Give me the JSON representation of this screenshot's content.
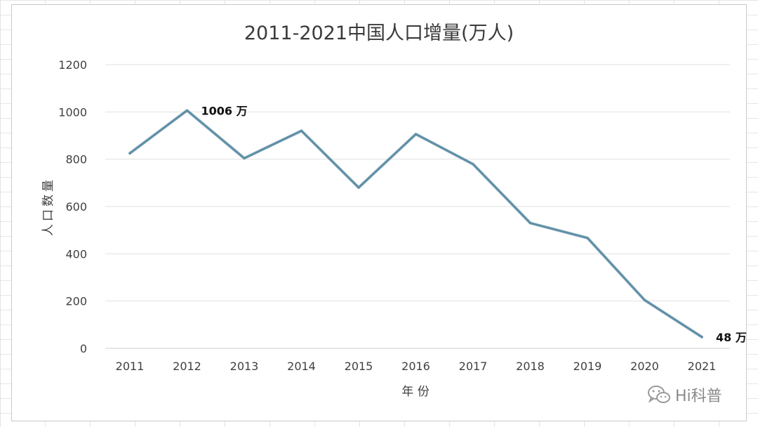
{
  "chart_data": {
    "type": "line",
    "title": "2011-2021中国人口增量(万人)",
    "xlabel": "年 份",
    "ylabel": "人口数量",
    "categories": [
      "2011",
      "2012",
      "2013",
      "2014",
      "2015",
      "2016",
      "2017",
      "2018",
      "2019",
      "2020",
      "2021"
    ],
    "series": [
      {
        "values": [
          825,
          1006,
          804,
          920,
          680,
          906,
          779,
          530,
          467,
          204,
          48
        ]
      }
    ],
    "ylim": [
      0,
      1200
    ],
    "yticks": [
      0,
      200,
      400,
      600,
      800,
      1000,
      1200
    ],
    "grid": true,
    "annotations": [
      {
        "index": 1,
        "text": "1006 万"
      },
      {
        "index": 10,
        "text": "48 万"
      }
    ],
    "line_color": "#5b8fa8"
  },
  "watermark": {
    "text": "Hi科普",
    "icon": "wechat-icon"
  }
}
